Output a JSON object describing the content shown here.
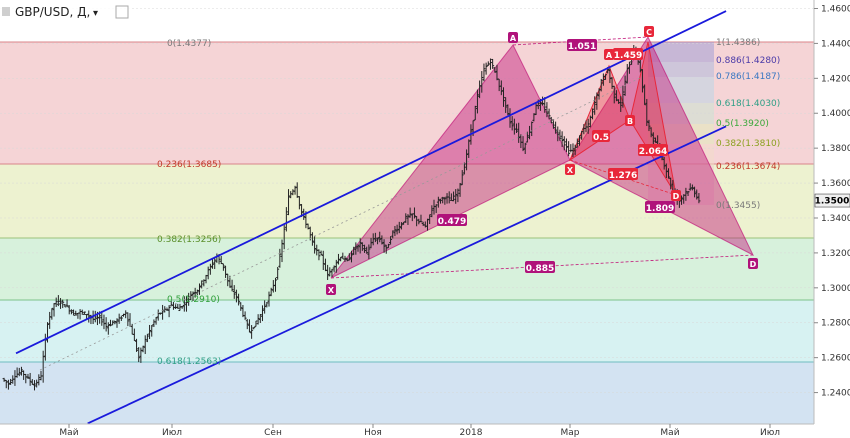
{
  "symbol_title": "GBP/USD, Д,",
  "icons": [
    "dropdown-caret-icon",
    "settings-square-icon",
    "chart-type-icon"
  ],
  "colors": {
    "candle": "#222222",
    "channel": "#1a1adc",
    "pattern_fill": "#c2187a",
    "label_magenta": "#b0127a",
    "label_red": "#e8273a"
  },
  "chart_data": {
    "type": "ohlc",
    "x_ticks": [
      "Май",
      "Июл",
      "Сен",
      "Ноя",
      "2018",
      "Мар",
      "Май",
      "Июл"
    ],
    "y_ticks": [
      "1.2400",
      "1.2600",
      "1.2800",
      "1.3000",
      "1.3200",
      "1.3400",
      "1.3600",
      "1.3800",
      "1.4000",
      "1.4200",
      "1.4400",
      "1.4600"
    ],
    "ylim": [
      1.222,
      1.462
    ],
    "current_price": "1.3500",
    "grid": true,
    "price_path": [
      1.248,
      1.245,
      1.25,
      1.252,
      1.248,
      1.244,
      1.25,
      1.28,
      1.291,
      1.292,
      1.289,
      1.285,
      1.286,
      1.285,
      1.282,
      1.283,
      1.278,
      1.28,
      1.282,
      1.286,
      1.274,
      1.26,
      1.27,
      1.278,
      1.285,
      1.287,
      1.29,
      1.288,
      1.291,
      1.296,
      1.299,
      1.305,
      1.312,
      1.318,
      1.312,
      1.3,
      1.295,
      1.285,
      1.275,
      1.28,
      1.287,
      1.295,
      1.305,
      1.325,
      1.352,
      1.358,
      1.343,
      1.334,
      1.322,
      1.318,
      1.307,
      1.313,
      1.318,
      1.315,
      1.322,
      1.325,
      1.32,
      1.328,
      1.328,
      1.322,
      1.332,
      1.335,
      1.34,
      1.342,
      1.338,
      1.335,
      1.345,
      1.35,
      1.352,
      1.35,
      1.355,
      1.37,
      1.39,
      1.41,
      1.425,
      1.43,
      1.42,
      1.408,
      1.395,
      1.39,
      1.38,
      1.39,
      1.405,
      1.405,
      1.398,
      1.39,
      1.385,
      1.378,
      1.38,
      1.39,
      1.393,
      1.406,
      1.418,
      1.425,
      1.41,
      1.405,
      1.425,
      1.436,
      1.425,
      1.395,
      1.385,
      1.378,
      1.367,
      1.355,
      1.35,
      1.355,
      1.357,
      1.35
    ],
    "channel_lines": [
      {
        "from": {
          "date_index": 2,
          "price": 1.2625
        },
        "to": {
          "date_index": 111,
          "price": 1.4585
        }
      },
      {
        "from": {
          "date_index": 13,
          "price": 1.2223
        },
        "to": {
          "date_index": 111,
          "price": 1.3925
        }
      }
    ],
    "fib_levels": [
      {
        "ratio": "0",
        "value": "1.4377",
        "label": "0(1.4377)"
      },
      {
        "ratio": "0.236",
        "value": "1.3685",
        "label": "0.236(1.3685)"
      },
      {
        "ratio": "0.382",
        "value": "1.3256",
        "label": "0.382(1.3256)"
      },
      {
        "ratio": "0.5",
        "value": "1.2910",
        "label": "0.5(1.2910)"
      },
      {
        "ratio": "0.618",
        "value": "1.2563",
        "label": "0.618(1.2563)"
      }
    ],
    "fib_right_levels": [
      {
        "label": "1(1.4386)",
        "color": "#7a7a7a"
      },
      {
        "label": "0.886(1.4280)",
        "color": "#4a3aa8"
      },
      {
        "label": "0.786(1.4187)",
        "color": "#3a77c2"
      },
      {
        "label": "0.618(1.4030)",
        "color": "#2f9f86"
      },
      {
        "label": "0.5(1.3920)",
        "color": "#3aa83a"
      },
      {
        "label": "0.382(1.3810)",
        "color": "#8aa11f"
      },
      {
        "label": "0.236(1.3674)",
        "color": "#c23b2a"
      },
      {
        "label": "0(1.3455)",
        "color": "#7a7a7a"
      }
    ],
    "pattern_points": [
      "X",
      "A",
      "C",
      "D"
    ],
    "inner_points": [
      "A",
      "B",
      "C",
      "D",
      "X"
    ],
    "ratios": [
      "1.051",
      "1.459",
      "0.5",
      "2.064",
      "1.276",
      "1.809",
      "0.479",
      "0.885"
    ]
  }
}
